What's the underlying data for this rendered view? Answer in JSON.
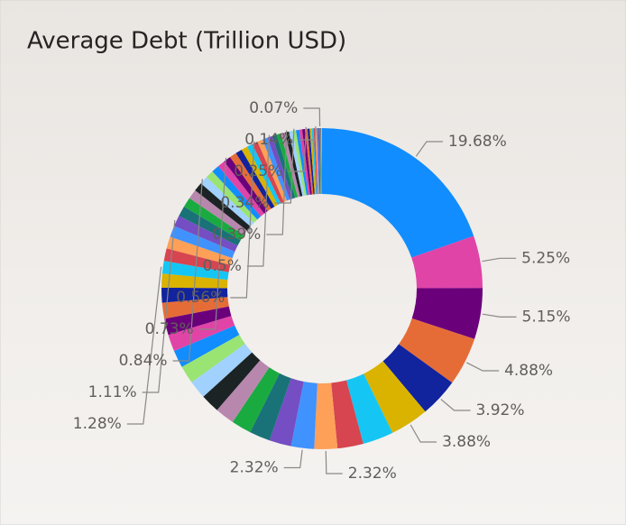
{
  "chart_data": {
    "type": "donut",
    "title": "Average Debt (Trillion USD)",
    "values": [
      19.68,
      5.25,
      5.15,
      4.88,
      3.92,
      3.88,
      3.1,
      2.6,
      2.32,
      2.32,
      2.2,
      2.1,
      2.0,
      1.95,
      1.9,
      1.85,
      1.8,
      1.75,
      1.7,
      1.65,
      1.6,
      1.5,
      1.4,
      1.28,
      1.25,
      1.2,
      1.15,
      1.11,
      1.05,
      1.0,
      0.95,
      0.9,
      0.84,
      0.8,
      0.78,
      0.75,
      0.73,
      0.7,
      0.66,
      0.62,
      0.58,
      0.56,
      0.54,
      0.52,
      0.5,
      0.47,
      0.44,
      0.42,
      0.39,
      0.37,
      0.34,
      0.32,
      0.3,
      0.28,
      0.25,
      0.22,
      0.2,
      0.18,
      0.16,
      0.14,
      0.12,
      0.1,
      0.08,
      0.07,
      0.06,
      0.05,
      0.04,
      0.03
    ],
    "value_labels": [
      "19.68%",
      "5.25%",
      "5.15%",
      "4.88%",
      "3.92%",
      "3.88%",
      null,
      null,
      "2.32%",
      "2.32%",
      null,
      null,
      null,
      null,
      null,
      null,
      null,
      null,
      null,
      null,
      null,
      null,
      null,
      "1.28%",
      null,
      null,
      null,
      "1.11%",
      null,
      null,
      null,
      null,
      "0.84%",
      null,
      null,
      null,
      "0.73%",
      null,
      null,
      null,
      null,
      "0.56%",
      null,
      null,
      "0.5%",
      null,
      null,
      null,
      "0.39%",
      null,
      "0.34%",
      null,
      null,
      null,
      "0.25%",
      null,
      null,
      null,
      null,
      "0.14%",
      null,
      null,
      null,
      "0.07%",
      null,
      null,
      null,
      null
    ],
    "colors": [
      "#118DFF",
      "#E044A7",
      "#6B007B",
      "#E66C37",
      "#12239E",
      "#D9B300",
      "#15C6F4",
      "#D64550",
      "#FFA058",
      "#4092FF",
      "#744EC2",
      "#197278",
      "#1AAB40",
      "#B887AD",
      "#1C2325",
      "#A0D1FF",
      "#99E472",
      "#118DFF",
      "#E044A7",
      "#6B007B",
      "#E66C37",
      "#12239E",
      "#D9B300",
      "#15C6F4",
      "#D64550",
      "#FFA058",
      "#4092FF",
      "#744EC2",
      "#197278",
      "#1AAB40",
      "#B887AD",
      "#1C2325",
      "#A0D1FF",
      "#99E472",
      "#118DFF",
      "#E044A7",
      "#6B007B",
      "#E66C37",
      "#12239E",
      "#D9B300",
      "#15C6F4",
      "#D64550",
      "#FFA058",
      "#4092FF",
      "#744EC2",
      "#197278",
      "#1AAB40",
      "#B887AD",
      "#1C2325",
      "#A0D1FF",
      "#99E472",
      "#118DFF",
      "#E044A7",
      "#6B007B",
      "#E66C37",
      "#12239E",
      "#D9B300",
      "#15C6F4",
      "#D64550",
      "#FFA058",
      "#4092FF",
      "#744EC2",
      "#197278",
      "#1AAB40",
      "#B887AD",
      "#1C2325",
      "#A0D1FF",
      "#99E472"
    ]
  }
}
